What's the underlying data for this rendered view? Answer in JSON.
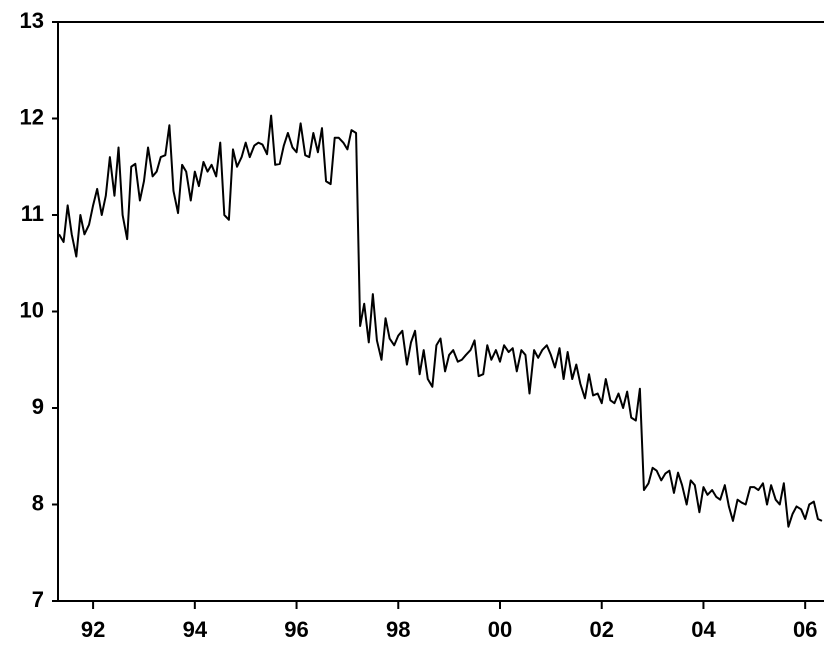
{
  "chart_data": {
    "type": "line",
    "x": [
      1991.33,
      1991.42,
      1991.5,
      1991.58,
      1991.67,
      1991.75,
      1991.83,
      1991.92,
      1992,
      1992.08,
      1992.17,
      1992.25,
      1992.33,
      1992.42,
      1992.5,
      1992.58,
      1992.67,
      1992.75,
      1992.83,
      1992.92,
      1993,
      1993.08,
      1993.17,
      1993.25,
      1993.33,
      1993.42,
      1993.5,
      1993.58,
      1993.67,
      1993.75,
      1993.83,
      1993.92,
      1994,
      1994.08,
      1994.17,
      1994.25,
      1994.33,
      1994.42,
      1994.5,
      1994.58,
      1994.67,
      1994.75,
      1994.83,
      1994.92,
      1995,
      1995.08,
      1995.17,
      1995.25,
      1995.33,
      1995.42,
      1995.5,
      1995.58,
      1995.67,
      1995.75,
      1995.83,
      1995.92,
      1996,
      1996.08,
      1996.17,
      1996.25,
      1996.33,
      1996.42,
      1996.5,
      1996.58,
      1996.67,
      1996.75,
      1996.83,
      1996.92,
      1997,
      1997.08,
      1997.17,
      1997.25,
      1997.33,
      1997.42,
      1997.5,
      1997.58,
      1997.67,
      1997.75,
      1997.83,
      1997.92,
      1998,
      1998.08,
      1998.17,
      1998.25,
      1998.33,
      1998.42,
      1998.5,
      1998.58,
      1998.67,
      1998.75,
      1998.83,
      1998.92,
      1999,
      1999.08,
      1999.17,
      1999.25,
      1999.33,
      1999.42,
      1999.5,
      1999.58,
      1999.67,
      1999.75,
      1999.83,
      1999.92,
      2000,
      2000.08,
      2000.17,
      2000.25,
      2000.33,
      2000.42,
      2000.5,
      2000.58,
      2000.67,
      2000.75,
      2000.83,
      2000.92,
      2001,
      2001.08,
      2001.17,
      2001.25,
      2001.33,
      2001.42,
      2001.5,
      2001.58,
      2001.67,
      2001.75,
      2001.83,
      2001.92,
      2002,
      2002.08,
      2002.17,
      2002.25,
      2002.33,
      2002.42,
      2002.5,
      2002.58,
      2002.67,
      2002.75,
      2002.83,
      2002.92,
      2003,
      2003.08,
      2003.17,
      2003.25,
      2003.33,
      2003.42,
      2003.5,
      2003.58,
      2003.67,
      2003.75,
      2003.83,
      2003.92,
      2004,
      2004.08,
      2004.17,
      2004.25,
      2004.33,
      2004.42,
      2004.5,
      2004.58,
      2004.67,
      2004.75,
      2004.83,
      2004.92,
      2005,
      2005.08,
      2005.17,
      2005.25,
      2005.33,
      2005.42,
      2005.5,
      2005.58,
      2005.67,
      2005.75,
      2005.83,
      2005.92,
      2006,
      2006.08,
      2006.17,
      2006.25,
      2006.33
    ],
    "series": [
      {
        "color": "#000000",
        "values": [
          10.8,
          10.72,
          11.1,
          10.8,
          10.57,
          11.0,
          10.8,
          10.9,
          11.1,
          11.27,
          11.0,
          11.2,
          11.6,
          11.2,
          11.7,
          11.0,
          10.75,
          11.5,
          11.53,
          11.15,
          11.35,
          11.7,
          11.4,
          11.45,
          11.6,
          11.62,
          11.93,
          11.25,
          11.02,
          11.52,
          11.45,
          11.15,
          11.45,
          11.3,
          11.55,
          11.45,
          11.52,
          11.4,
          11.75,
          11.0,
          10.95,
          11.68,
          11.5,
          11.6,
          11.75,
          11.6,
          11.72,
          11.75,
          11.73,
          11.63,
          12.03,
          11.52,
          11.53,
          11.72,
          11.85,
          11.7,
          11.65,
          11.95,
          11.62,
          11.6,
          11.85,
          11.65,
          11.9,
          11.35,
          11.32,
          11.8,
          11.8,
          11.75,
          11.68,
          11.88,
          11.85,
          9.85,
          10.08,
          9.68,
          10.18,
          9.7,
          9.5,
          9.93,
          9.72,
          9.65,
          9.75,
          9.8,
          9.45,
          9.68,
          9.8,
          9.35,
          9.6,
          9.3,
          9.22,
          9.65,
          9.72,
          9.38,
          9.55,
          9.6,
          9.48,
          9.5,
          9.55,
          9.6,
          9.7,
          9.33,
          9.35,
          9.65,
          9.5,
          9.6,
          9.48,
          9.65,
          9.58,
          9.62,
          9.38,
          9.6,
          9.55,
          9.15,
          9.6,
          9.52,
          9.6,
          9.65,
          9.55,
          9.42,
          9.62,
          9.3,
          9.58,
          9.3,
          9.45,
          9.25,
          9.1,
          9.35,
          9.13,
          9.15,
          9.05,
          9.3,
          9.08,
          9.05,
          9.15,
          9.0,
          9.17,
          8.9,
          8.87,
          9.2,
          8.15,
          8.22,
          8.38,
          8.35,
          8.25,
          8.32,
          8.35,
          8.12,
          8.33,
          8.2,
          8.0,
          8.25,
          8.2,
          7.92,
          8.18,
          8.1,
          8.15,
          8.08,
          8.05,
          8.2,
          7.98,
          7.83,
          8.05,
          8.02,
          8.0,
          8.18,
          8.18,
          8.15,
          8.22,
          8.0,
          8.2,
          8.05,
          8.0,
          8.22,
          7.77,
          7.9,
          7.98,
          7.95,
          7.85,
          8.0,
          8.03,
          7.85,
          7.83
        ]
      }
    ],
    "xlim": [
      1991.31,
      2006.37
    ],
    "xticks": [
      {
        "value": 1992,
        "label": "92"
      },
      {
        "value": 1994,
        "label": "94"
      },
      {
        "value": 1996,
        "label": "96"
      },
      {
        "value": 1998,
        "label": "98"
      },
      {
        "value": 2000,
        "label": "00"
      },
      {
        "value": 2002,
        "label": "02"
      },
      {
        "value": 2004,
        "label": "04"
      },
      {
        "value": 2006,
        "label": "06"
      }
    ],
    "ylim": [
      7,
      13
    ],
    "yticks": [
      7,
      8,
      9,
      10,
      11,
      12,
      13
    ]
  }
}
